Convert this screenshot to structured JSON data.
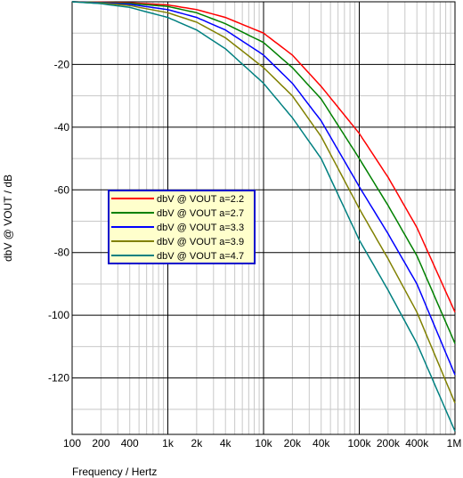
{
  "chart_data": {
    "type": "line",
    "xlabel": "Frequency / Hertz",
    "ylabel": "dbV @ VOUT / dB",
    "x_scale": "log",
    "xlim": [
      100,
      1000000
    ],
    "ylim": [
      -138,
      0
    ],
    "x_ticks": [
      {
        "value": 100,
        "label": "100"
      },
      {
        "value": 200,
        "label": "200"
      },
      {
        "value": 400,
        "label": "400"
      },
      {
        "value": 1000,
        "label": "1k"
      },
      {
        "value": 2000,
        "label": "2k"
      },
      {
        "value": 4000,
        "label": "4k"
      },
      {
        "value": 10000,
        "label": "10k"
      },
      {
        "value": 20000,
        "label": "20k"
      },
      {
        "value": 40000,
        "label": "40k"
      },
      {
        "value": 100000,
        "label": "100k"
      },
      {
        "value": 200000,
        "label": "200k"
      },
      {
        "value": 400000,
        "label": "400k"
      },
      {
        "value": 1000000,
        "label": "1M"
      }
    ],
    "y_ticks": [
      {
        "value": -20,
        "label": "-20"
      },
      {
        "value": -40,
        "label": "-40"
      },
      {
        "value": -60,
        "label": "-60"
      },
      {
        "value": -80,
        "label": "-80"
      },
      {
        "value": -100,
        "label": "-100"
      },
      {
        "value": -120,
        "label": "-120"
      }
    ],
    "grid": true,
    "legend_position": "center-left",
    "series": [
      {
        "name": "dbV @ VOUT a=2.2",
        "color": "#ff0000",
        "x": [
          100,
          200,
          400,
          1000,
          2000,
          4000,
          10000,
          20000,
          40000,
          100000,
          200000,
          400000,
          1000000
        ],
        "y": [
          0,
          -0.1,
          -0.3,
          -1,
          -2.5,
          -5,
          -10,
          -17,
          -27,
          -42,
          -56,
          -72,
          -99
        ]
      },
      {
        "name": "dbV @ VOUT a=2.7",
        "color": "#008000",
        "x": [
          100,
          200,
          400,
          1000,
          2000,
          4000,
          10000,
          20000,
          40000,
          100000,
          200000,
          400000,
          1000000
        ],
        "y": [
          0,
          -0.2,
          -0.5,
          -1.5,
          -3.5,
          -7,
          -13,
          -21,
          -31,
          -50,
          -65,
          -81,
          -109
        ]
      },
      {
        "name": "dbV @ VOUT a=3.3",
        "color": "#0000ff",
        "x": [
          100,
          200,
          400,
          1000,
          2000,
          4000,
          10000,
          20000,
          40000,
          100000,
          200000,
          400000,
          1000000
        ],
        "y": [
          0,
          -0.3,
          -0.8,
          -2.5,
          -5,
          -9,
          -17,
          -26,
          -38,
          -59,
          -74,
          -90,
          -119
        ]
      },
      {
        "name": "dbV @ VOUT a=3.9",
        "color": "#808000",
        "x": [
          100,
          200,
          400,
          1000,
          2000,
          4000,
          10000,
          20000,
          40000,
          100000,
          200000,
          400000,
          1000000
        ],
        "y": [
          0,
          -0.4,
          -1.2,
          -3.5,
          -6.5,
          -11.5,
          -21,
          -30,
          -43,
          -66,
          -82,
          -99,
          -128
        ]
      },
      {
        "name": "dbV @ VOUT a=4.7",
        "color": "#008080",
        "x": [
          100,
          200,
          400,
          1000,
          2000,
          4000,
          10000,
          20000,
          40000,
          100000,
          200000,
          400000,
          1000000
        ],
        "y": [
          0,
          -0.6,
          -1.8,
          -5,
          -9,
          -15,
          -26,
          -37,
          -50,
          -76,
          -92,
          -109,
          -137
        ]
      }
    ]
  }
}
